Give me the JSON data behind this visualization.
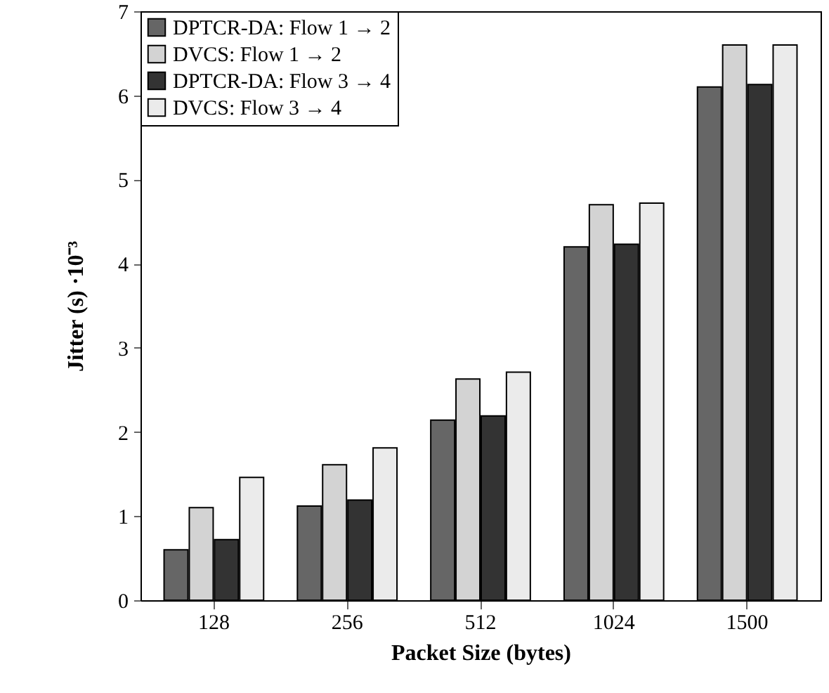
{
  "chart_data": {
    "type": "bar",
    "xlabel": "Packet Size (bytes)",
    "ylabel": "Jitter (s) ·10⁻³",
    "categories": [
      "128",
      "256",
      "512",
      "1024",
      "1500"
    ],
    "series": [
      {
        "name": "DPTCR-DA: Flow 1 → 2",
        "color": "#666666",
        "values": [
          0.6,
          1.12,
          2.14,
          4.2,
          6.1
        ]
      },
      {
        "name": "DVCS: Flow 1 → 2",
        "color": "#d3d3d3",
        "values": [
          1.1,
          1.61,
          2.63,
          4.7,
          6.6
        ]
      },
      {
        "name": "DPTCR-DA: Flow 3 → 4",
        "color": "#333333",
        "values": [
          0.72,
          1.19,
          2.19,
          4.23,
          6.13
        ]
      },
      {
        "name": "DVCS: Flow 3 → 4",
        "color": "#ebebeb",
        "values": [
          1.46,
          1.81,
          2.71,
          4.72,
          6.6
        ]
      }
    ],
    "ylim": [
      0,
      7
    ],
    "yticks": [
      0,
      1,
      2,
      3,
      4,
      5,
      6,
      7
    ],
    "grid": false,
    "legend": "top left"
  }
}
